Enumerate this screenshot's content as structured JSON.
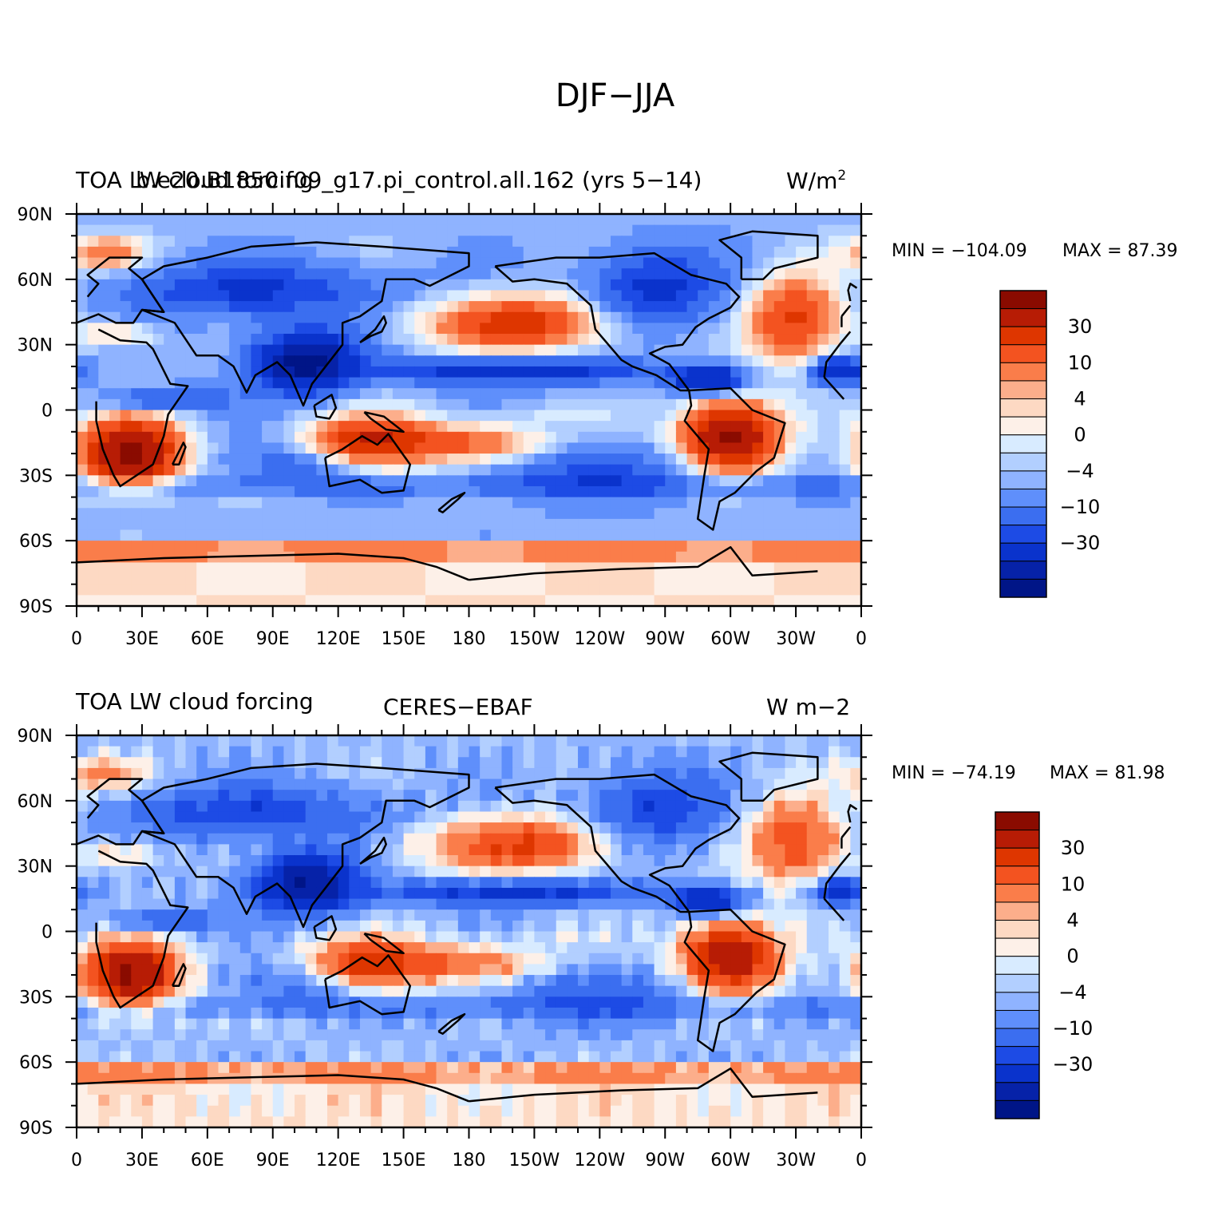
{
  "figure": {
    "title": "DJF−JJA",
    "lat_ticks": [
      "90N",
      "60N",
      "30N",
      "0",
      "30S",
      "60S",
      "90S"
    ],
    "lon_ticks": [
      "0",
      "30E",
      "60E",
      "90E",
      "120E",
      "150E",
      "180",
      "150W",
      "120W",
      "90W",
      "60W",
      "30W",
      "0"
    ]
  },
  "chart_data": [
    {
      "type": "heatmap",
      "panel": "model",
      "left_title": "TOA LW cloud forcing",
      "center_title": "b.e20.B1850.f09_g17.pi_control.all.162 (yrs 5−14)",
      "units_label": "W/m",
      "units_exp": "2",
      "min_label": "MIN = −104.09",
      "max_label": "MAX =   87.39",
      "min_value": -104.09,
      "max_value": 87.39,
      "xlim": [
        0,
        360
      ],
      "ylim": [
        -90,
        90
      ],
      "colorbar_levels": [
        -40,
        -30,
        -20,
        -15,
        -10,
        -6,
        -4,
        -2,
        0,
        2,
        4,
        6,
        10,
        15,
        20,
        30,
        40
      ],
      "colorbar_labels": [
        "30",
        "10",
        "4",
        "0",
        "−4",
        "−10",
        "−30"
      ]
    },
    {
      "type": "heatmap",
      "panel": "observations",
      "left_title": "TOA LW cloud forcing",
      "center_title": "CERES−EBAF",
      "units_label": "W m−2",
      "min_label": "MIN = −74.19",
      "max_label": "MAX =  81.98",
      "min_value": -74.19,
      "max_value": 81.98,
      "xlim": [
        0,
        360
      ],
      "ylim": [
        -90,
        90
      ],
      "colorbar_levels": [
        -40,
        -30,
        -20,
        -15,
        -10,
        -6,
        -4,
        -2,
        0,
        2,
        4,
        6,
        10,
        15,
        20,
        30,
        40
      ],
      "colorbar_labels": [
        "30",
        "10",
        "4",
        "0",
        "−4",
        "−10",
        "−30"
      ]
    }
  ],
  "colors": {
    "palette": [
      "#fdf0e8",
      "#fdd9c3",
      "#fcae8b",
      "#fa7d4a",
      "#f35320",
      "#de3600",
      "#b71c05",
      "#8a0b00",
      "#d8ebff",
      "#b2cfff",
      "#8fb3ff",
      "#5f8ffb",
      "#3b6ef0",
      "#1d4be5",
      "#0a33cc",
      "#0622a8",
      "#001587"
    ],
    "coast": "#000000",
    "frame": "#000000"
  }
}
